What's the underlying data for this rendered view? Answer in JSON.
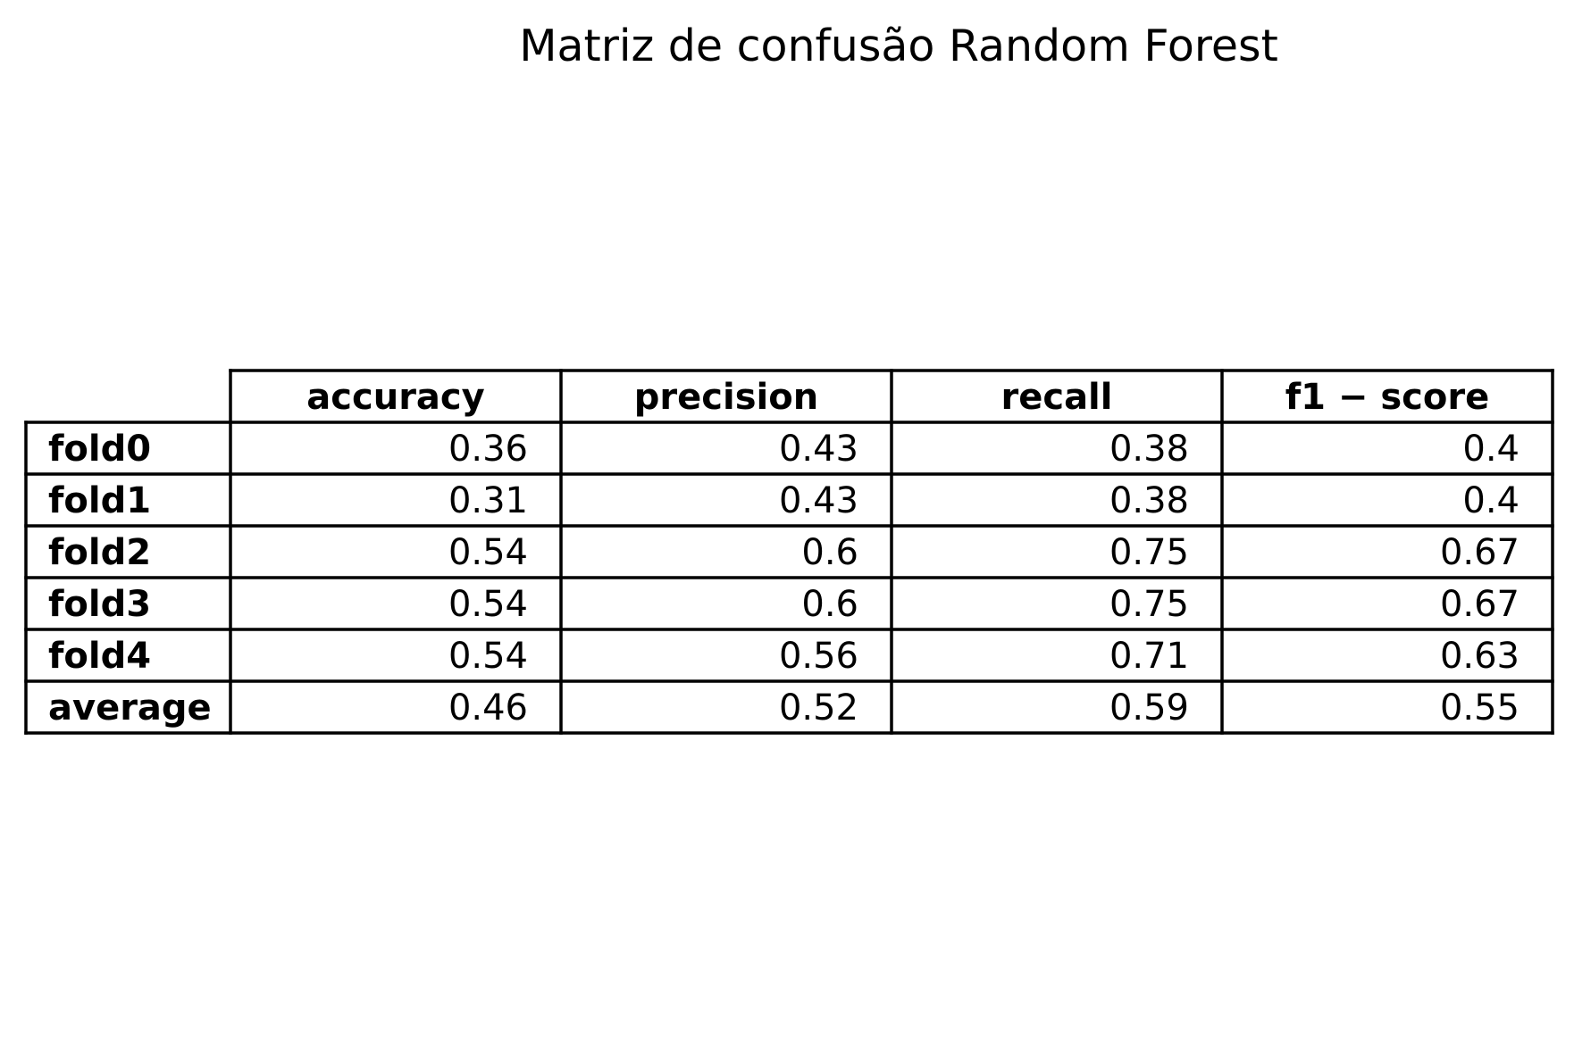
{
  "chart_data": {
    "type": "table",
    "title": "Matriz de confusão Random Forest",
    "columns": [
      "accuracy",
      "precision",
      "recall",
      "f1 − score"
    ],
    "rows": [
      {
        "label": "fold0",
        "values": [
          "0.36",
          "0.43",
          "0.38",
          "0.4"
        ]
      },
      {
        "label": "fold1",
        "values": [
          "0.31",
          "0.43",
          "0.38",
          "0.4"
        ]
      },
      {
        "label": "fold2",
        "values": [
          "0.54",
          "0.6",
          "0.75",
          "0.67"
        ]
      },
      {
        "label": "fold3",
        "values": [
          "0.54",
          "0.6",
          "0.75",
          "0.67"
        ]
      },
      {
        "label": "fold4",
        "values": [
          "0.54",
          "0.56",
          "0.71",
          "0.63"
        ]
      },
      {
        "label": "average",
        "values": [
          "0.46",
          "0.52",
          "0.59",
          "0.55"
        ]
      }
    ]
  }
}
